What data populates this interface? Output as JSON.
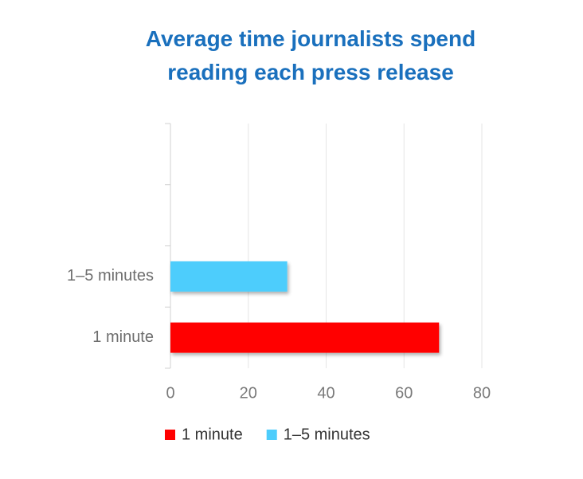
{
  "chart_data": {
    "type": "hbar",
    "title": "Average time journalists spend reading each press release",
    "categories": [
      "1 minute",
      "1–5 minutes",
      null,
      null
    ],
    "values": [
      69,
      30,
      null,
      null
    ],
    "colors": [
      "#ff0000",
      "#4dcdfc",
      null,
      null
    ],
    "xlim": [
      0,
      80
    ],
    "xticks": [
      0,
      20,
      40,
      60,
      80
    ],
    "grid": true,
    "legend": "bottom"
  }
}
